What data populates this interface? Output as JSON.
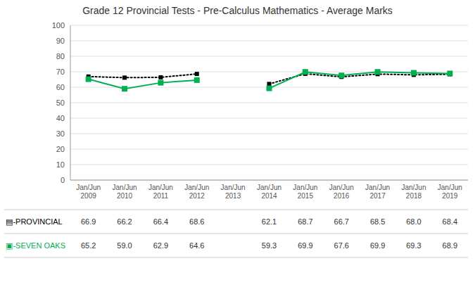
{
  "chart_data": {
    "type": "line",
    "title": "Grade 12 Provincial Tests - Pre-Calculus Mathematics - Average Marks",
    "categories": [
      "Jan/Jun\n2009",
      "Jan/Jun\n2010",
      "Jan/Jun\n2011",
      "Jan/Jun\n2012",
      "Jan/Jun\n2013",
      "Jan/Jun\n2014",
      "Jan/Jun\n2015",
      "Jan/Jun\n2016",
      "Jan/Jun\n2017",
      "Jan/Jun\n2018",
      "Jan/Jun\n2019"
    ],
    "series": [
      {
        "name": "▤-PROVINCIAL",
        "color": "#000000",
        "marker": "square",
        "line_style": "dotted",
        "values": [
          66.9,
          66.2,
          66.4,
          68.6,
          null,
          62.1,
          68.7,
          66.7,
          68.5,
          68.0,
          68.4
        ],
        "value_labels": [
          "66.9",
          "66.2",
          "66.4",
          "68.6",
          null,
          "62.1",
          "68.7",
          "66.7",
          "68.5",
          "68.0",
          "68.4"
        ]
      },
      {
        "name": "▣-SEVEN OAKS",
        "color": "#00b050",
        "marker": "square",
        "line_style": "solid",
        "values": [
          65.2,
          59.0,
          62.9,
          64.6,
          null,
          59.3,
          69.9,
          67.6,
          69.9,
          69.3,
          68.9
        ],
        "value_labels": [
          "65.2",
          "59.0",
          "62.9",
          "64.6",
          null,
          "59.3",
          "69.9",
          "67.6",
          "69.9",
          "69.3",
          "68.9"
        ]
      }
    ],
    "ylim": [
      0,
      100
    ],
    "yticks": [
      0,
      10,
      20,
      30,
      40,
      50,
      60,
      70,
      80,
      90,
      100
    ],
    "grid": true
  }
}
